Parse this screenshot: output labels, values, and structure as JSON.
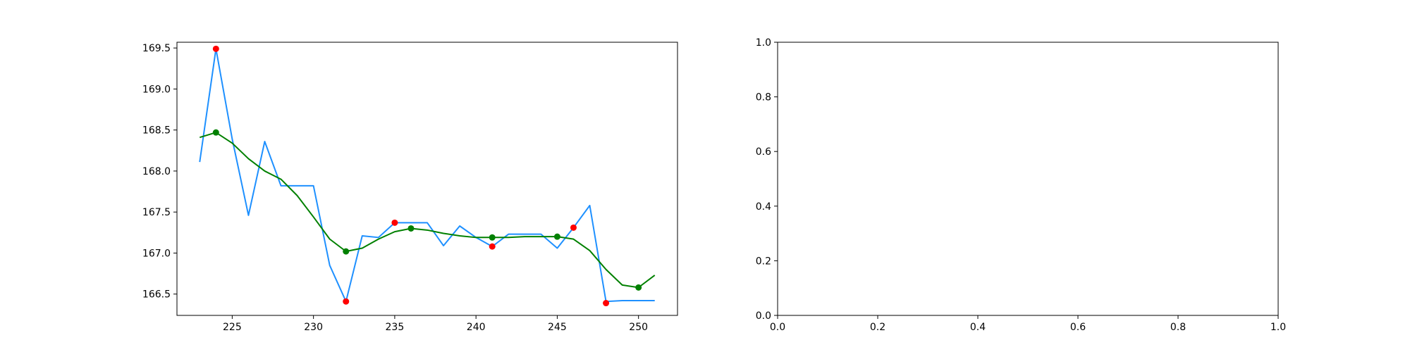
{
  "chart_data": [
    {
      "type": "line",
      "title": "",
      "xlabel": "",
      "ylabel": "",
      "xlim": [
        221.6,
        252.4
      ],
      "ylim": [
        166.24,
        169.57
      ],
      "grid": false,
      "xticks": [
        225,
        230,
        235,
        240,
        245,
        250
      ],
      "xtick_labels": [
        "225",
        "230",
        "235",
        "240",
        "245",
        "250"
      ],
      "yticks": [
        166.5,
        167.0,
        167.5,
        168.0,
        168.5,
        169.0,
        169.5
      ],
      "ytick_labels": [
        "166.5",
        "167.0",
        "167.5",
        "168.0",
        "168.5",
        "169.0",
        "169.5"
      ],
      "series": [
        {
          "kind": "line",
          "color": "#1e90ff",
          "x": [
            223,
            224,
            225,
            226,
            227,
            228,
            229,
            230,
            231,
            232,
            233,
            234,
            235,
            236,
            237,
            238,
            239,
            240,
            241,
            242,
            243,
            244,
            245,
            246,
            247,
            248,
            249,
            250,
            251
          ],
          "y": [
            168.11,
            169.49,
            168.39,
            167.46,
            168.36,
            167.82,
            167.82,
            167.82,
            166.85,
            166.41,
            167.21,
            167.19,
            167.37,
            167.37,
            167.37,
            167.09,
            167.33,
            167.19,
            167.08,
            167.23,
            167.23,
            167.23,
            167.06,
            167.31,
            167.58,
            166.41,
            166.42,
            166.42,
            166.42
          ]
        },
        {
          "kind": "line",
          "color": "#008000",
          "x": [
            223,
            224,
            225,
            226,
            227,
            228,
            229,
            230,
            231,
            232,
            233,
            234,
            235,
            236,
            237,
            238,
            239,
            240,
            241,
            242,
            243,
            244,
            245,
            246,
            247,
            248,
            249,
            250,
            251
          ],
          "y": [
            168.41,
            168.47,
            168.34,
            168.15,
            168.0,
            167.9,
            167.7,
            167.44,
            167.17,
            167.02,
            167.06,
            167.17,
            167.26,
            167.3,
            167.28,
            167.24,
            167.21,
            167.19,
            167.19,
            167.19,
            167.2,
            167.2,
            167.2,
            167.17,
            167.03,
            166.8,
            166.61,
            166.58,
            166.73
          ]
        },
        {
          "kind": "scatter",
          "color": "#ff0000",
          "x": [
            224,
            232,
            235,
            241,
            246,
            248
          ],
          "y": [
            169.49,
            166.41,
            167.37,
            167.08,
            167.31,
            166.39
          ]
        },
        {
          "kind": "scatter",
          "color": "#008000",
          "x": [
            224,
            232,
            236,
            241,
            245,
            250
          ],
          "y": [
            168.47,
            167.02,
            167.3,
            167.19,
            167.2,
            166.58
          ]
        }
      ]
    },
    {
      "type": "line",
      "title": "",
      "xlabel": "",
      "ylabel": "",
      "xlim": [
        0,
        1
      ],
      "ylim": [
        0,
        1
      ],
      "grid": false,
      "xticks": [
        0,
        0.2,
        0.4,
        0.6,
        0.8,
        1.0
      ],
      "xtick_labels": [
        "0.0",
        "0.2",
        "0.4",
        "0.6",
        "0.8",
        "1.0"
      ],
      "yticks": [
        0,
        0.2,
        0.4,
        0.6,
        0.8,
        1.0
      ],
      "ytick_labels": [
        "0.0",
        "0.2",
        "0.4",
        "0.6",
        "0.8",
        "1.0"
      ],
      "series": []
    }
  ]
}
